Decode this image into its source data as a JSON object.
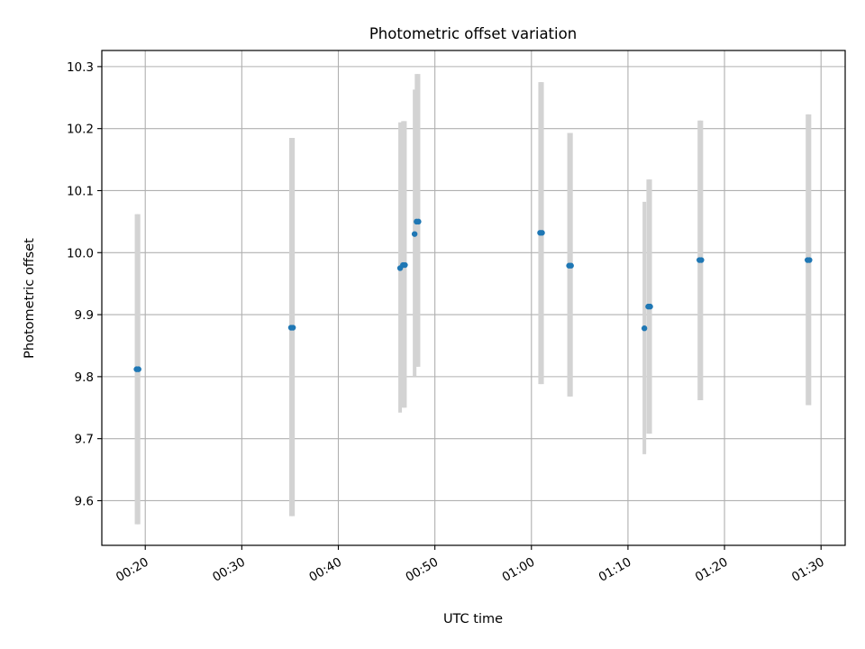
{
  "chart_data": {
    "type": "scatter",
    "title": "Photometric offset variation",
    "xlabel": "UTC time",
    "ylabel": "Photometric offset",
    "x_tick_labels": [
      "00:20",
      "00:30",
      "00:40",
      "00:50",
      "01:00",
      "01:10",
      "01:20",
      "01:30"
    ],
    "y_tick_labels": [
      "9.6",
      "9.7",
      "9.8",
      "9.9",
      "10.0",
      "10.1",
      "10.2",
      "10.3"
    ],
    "x_ticks": [
      "00:20",
      "00:30",
      "00:40",
      "00:50",
      "01:00",
      "01:10",
      "01:20",
      "01:30"
    ],
    "y_ticks": [
      9.6,
      9.7,
      9.8,
      9.9,
      10.0,
      10.1,
      10.2,
      10.3
    ],
    "xlim": [
      "00:15:30",
      "01:32:30"
    ],
    "ylim": [
      9.528,
      10.326
    ],
    "grid": true,
    "marker_color": "#1f77b4",
    "errorbar_color": "#d3d3d3",
    "points": [
      {
        "x": "00:19:06",
        "y": 9.812,
        "y_low": 9.562,
        "y_high": 10.062
      },
      {
        "x": "00:19:18",
        "y": 9.812,
        "y_low": 9.562,
        "y_high": 10.062
      },
      {
        "x": "00:35:06",
        "y": 9.879,
        "y_low": 9.575,
        "y_high": 10.185
      },
      {
        "x": "00:35:18",
        "y": 9.879,
        "y_low": 9.575,
        "y_high": 10.185
      },
      {
        "x": "00:46:24",
        "y": 9.975,
        "y_low": 9.742,
        "y_high": 10.21
      },
      {
        "x": "00:46:42",
        "y": 9.98,
        "y_low": 9.75,
        "y_high": 10.212
      },
      {
        "x": "00:46:54",
        "y": 9.98,
        "y_low": 9.75,
        "y_high": 10.212
      },
      {
        "x": "00:47:54",
        "y": 10.03,
        "y_low": 9.8,
        "y_high": 10.263
      },
      {
        "x": "00:48:06",
        "y": 10.05,
        "y_low": 9.816,
        "y_high": 10.288
      },
      {
        "x": "00:48:18",
        "y": 10.05,
        "y_low": 9.816,
        "y_high": 10.288
      },
      {
        "x": "01:00:54",
        "y": 10.032,
        "y_low": 9.788,
        "y_high": 10.275
      },
      {
        "x": "01:01:06",
        "y": 10.032,
        "y_low": 9.788,
        "y_high": 10.275
      },
      {
        "x": "01:03:54",
        "y": 9.979,
        "y_low": 9.768,
        "y_high": 10.193
      },
      {
        "x": "01:04:06",
        "y": 9.979,
        "y_low": 9.768,
        "y_high": 10.193
      },
      {
        "x": "01:11:42",
        "y": 9.878,
        "y_low": 9.675,
        "y_high": 10.082
      },
      {
        "x": "01:12:06",
        "y": 9.913,
        "y_low": 9.708,
        "y_high": 10.118
      },
      {
        "x": "01:12:18",
        "y": 9.913,
        "y_low": 9.708,
        "y_high": 10.118
      },
      {
        "x": "01:17:24",
        "y": 9.988,
        "y_low": 9.762,
        "y_high": 10.213
      },
      {
        "x": "01:17:36",
        "y": 9.988,
        "y_low": 9.762,
        "y_high": 10.213
      },
      {
        "x": "01:28:36",
        "y": 9.988,
        "y_low": 9.754,
        "y_high": 10.223
      },
      {
        "x": "01:28:48",
        "y": 9.988,
        "y_low": 9.754,
        "y_high": 10.223
      }
    ]
  }
}
